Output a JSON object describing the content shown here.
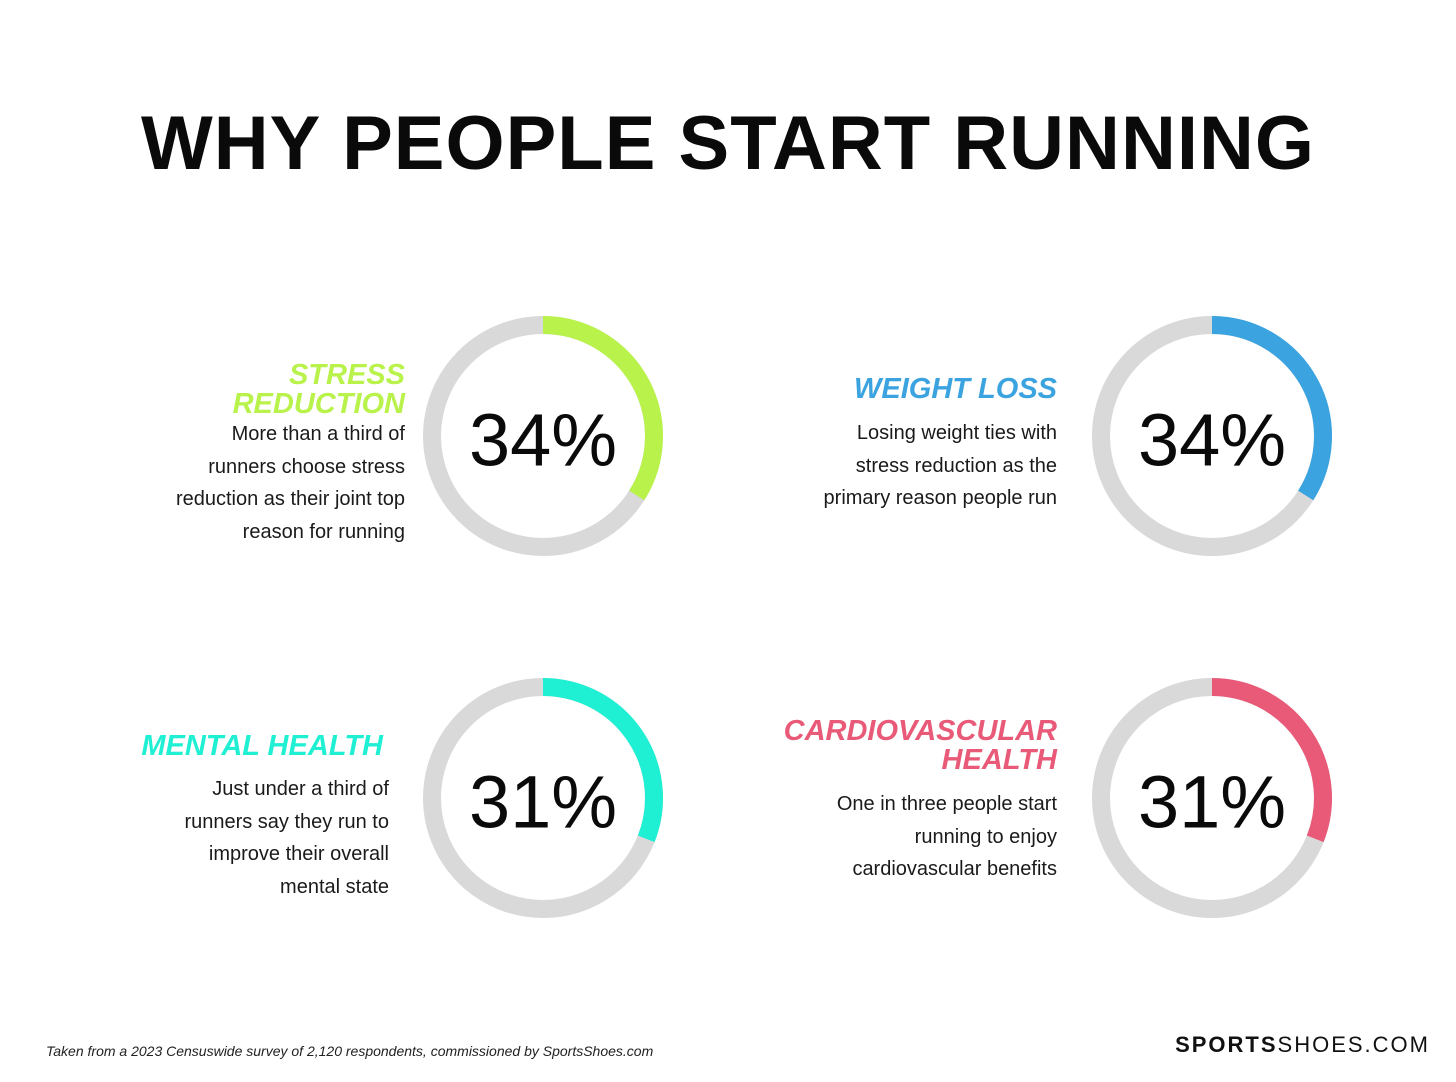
{
  "title": "WHY PEOPLE START RUNNING",
  "chart_data": [
    {
      "type": "pie",
      "label": "STRESS REDUCTION",
      "label_lines": [
        "STRESS",
        "REDUCTION"
      ],
      "value": 34,
      "display": "34%",
      "description_lines": [
        "More than a third of",
        "runners choose stress",
        "reduction as their joint top",
        "reason for running"
      ],
      "color": "#b8f24b",
      "track_color": "#d9d9d9"
    },
    {
      "type": "pie",
      "label": "WEIGHT LOSS",
      "label_lines": [
        "WEIGHT LOSS"
      ],
      "value": 34,
      "display": "34%",
      "description_lines": [
        "Losing weight ties with",
        "stress reduction as the",
        "primary reason people run"
      ],
      "color": "#3aa3e0",
      "track_color": "#d9d9d9"
    },
    {
      "type": "pie",
      "label": "MENTAL HEALTH",
      "label_lines": [
        "MENTAL HEALTH"
      ],
      "value": 31,
      "display": "31%",
      "description_lines": [
        "Just under a third of",
        "runners say they run to",
        "improve their overall",
        "mental state"
      ],
      "color": "#1fefd2",
      "track_color": "#d9d9d9"
    },
    {
      "type": "pie",
      "label": "CARDIOVASCULAR HEALTH",
      "label_lines": [
        "CARDIOVASCULAR",
        "HEALTH"
      ],
      "value": 31,
      "display": "31%",
      "description_lines": [
        "One in three people start",
        "running to enjoy",
        "cardiovascular benefits"
      ],
      "color": "#e85a78",
      "track_color": "#d9d9d9"
    }
  ],
  "footnote": "Taken from a 2023 Censuswide survey of 2,120 respondents, commissioned by SportsShoes.com",
  "brand": {
    "bold": "SPORTS",
    "light": "SHOES.COM"
  }
}
